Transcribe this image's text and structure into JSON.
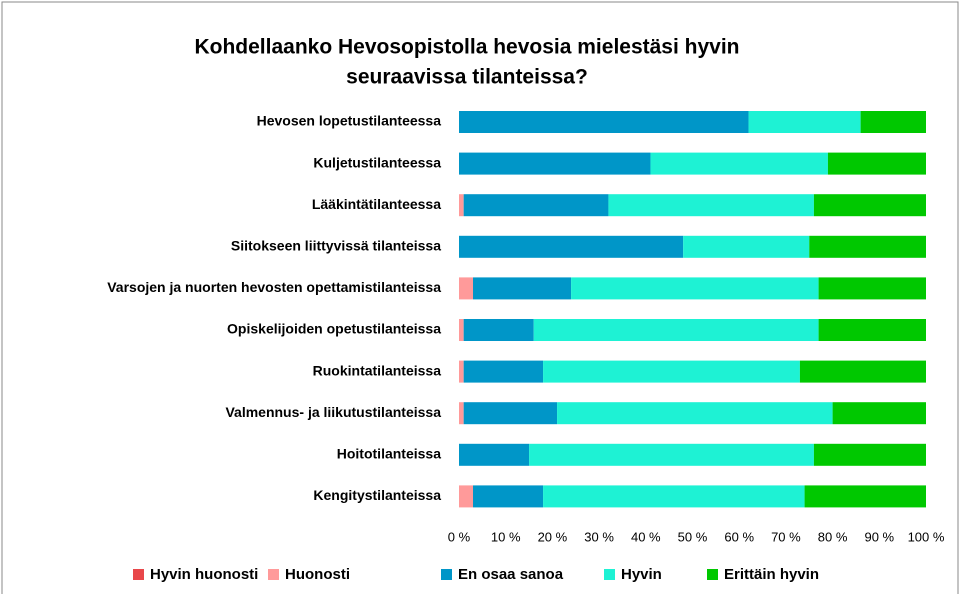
{
  "chart_data": {
    "type": "bar",
    "orientation": "horizontal",
    "stacked": true,
    "title": [
      "Kohdellaanko Hevosopistolla hevosia mielestäsi hyvin",
      "seuraavissa tilanteissa?"
    ],
    "categories": [
      "Hevosen lopetustilanteessa",
      "Kuljetustilanteessa",
      "Lääkintätilanteessa",
      "Siitokseen liittyvissä tilanteissa",
      "Varsojen ja nuorten hevosten opettamistilanteissa",
      "Opiskelijoiden opetustilanteissa",
      "Ruokintatilanteissa",
      "Valmennus- ja liikutustilanteissa",
      "Hoitotilanteissa",
      "Kengitystilanteissa"
    ],
    "series": [
      {
        "name": "Hyvin huonosti",
        "color": "#e8474a",
        "values": [
          0,
          0,
          0,
          0,
          0,
          0,
          0,
          0,
          0,
          0
        ]
      },
      {
        "name": "Huonosti",
        "color": "#ff9a9a",
        "values": [
          0,
          0,
          1,
          0,
          3,
          1,
          1,
          1,
          0,
          3
        ]
      },
      {
        "name": "En osaa sanoa",
        "color": "#0096c8",
        "values": [
          62,
          41,
          31,
          48,
          21,
          15,
          17,
          20,
          15,
          15
        ]
      },
      {
        "name": "Hyvin",
        "color": "#1ef2d4",
        "values": [
          24,
          38,
          44,
          27,
          53,
          61,
          55,
          59,
          61,
          56
        ]
      },
      {
        "name": "Erittäin hyvin",
        "color": "#00c800",
        "values": [
          14,
          21,
          24,
          25,
          23,
          23,
          27,
          20,
          24,
          26
        ]
      }
    ],
    "xlim": [
      0,
      100
    ],
    "xticks": [
      {
        "value": 0,
        "label": "0 %"
      },
      {
        "value": 10,
        "label": "10 %"
      },
      {
        "value": 20,
        "label": "20 %"
      },
      {
        "value": 30,
        "label": "30 %"
      },
      {
        "value": 40,
        "label": "40 %"
      },
      {
        "value": 50,
        "label": "50 %"
      },
      {
        "value": 60,
        "label": "60 %"
      },
      {
        "value": 70,
        "label": "70 %"
      },
      {
        "value": 80,
        "label": "80 %"
      },
      {
        "value": 90,
        "label": "90 %"
      },
      {
        "value": 100,
        "label": "100 %"
      }
    ],
    "legend": "bottom"
  }
}
